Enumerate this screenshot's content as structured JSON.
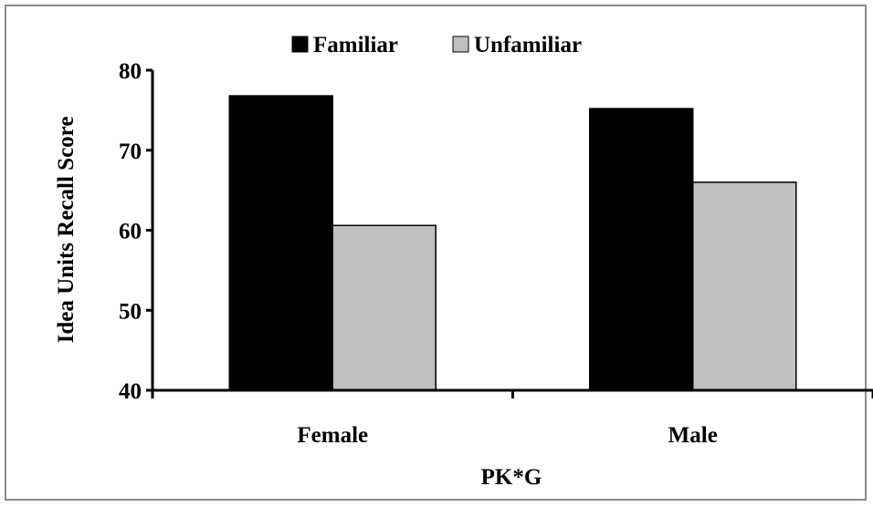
{
  "chart_data": {
    "type": "bar",
    "categories": [
      "Female",
      "Male"
    ],
    "series": [
      {
        "name": "Familiar",
        "values": [
          76.8,
          75.2
        ],
        "color": "#000000"
      },
      {
        "name": "Unfamiliar",
        "values": [
          60.6,
          66.0
        ],
        "color": "#c0c0c0"
      }
    ],
    "xlabel": "PK*G",
    "ylabel": "Idea Units Recall Score",
    "ylim": [
      40,
      80
    ],
    "yticks": [
      40,
      50,
      60,
      70,
      80
    ],
    "legend_position": "top",
    "grid": false
  }
}
